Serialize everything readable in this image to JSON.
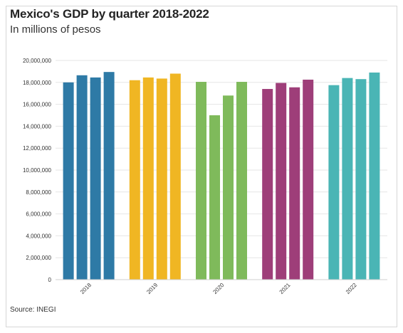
{
  "title": "Mexico's GDP by quarter 2018-2022",
  "subtitle": "In millions of pesos",
  "source": "Source: INEGI",
  "chart_data": {
    "type": "bar",
    "title": "Mexico's GDP by quarter 2018-2022",
    "subtitle": "In millions of pesos",
    "xlabel": "",
    "ylabel": "",
    "ylim": [
      0,
      20000000
    ],
    "yticks": [
      0,
      2000000,
      4000000,
      6000000,
      8000000,
      10000000,
      12000000,
      14000000,
      16000000,
      18000000,
      20000000
    ],
    "ytick_labels": [
      "0",
      "2,000,000",
      "4,000,000",
      "6,000,000",
      "8,000,000",
      "10,000,000",
      "12,000,000",
      "14,000,000",
      "16,000,000",
      "18,000,000",
      "20,000,000"
    ],
    "grid": true,
    "groups": [
      {
        "label": "2018",
        "color": "#2e7aa6",
        "values": [
          18000000,
          18650000,
          18450000,
          18950000
        ]
      },
      {
        "label": "2019",
        "color": "#f0b623",
        "values": [
          18200000,
          18450000,
          18350000,
          18800000
        ]
      },
      {
        "label": "2020",
        "color": "#7fba5b",
        "values": [
          18050000,
          15000000,
          16800000,
          18050000
        ]
      },
      {
        "label": "2021",
        "color": "#9e3e79",
        "values": [
          17400000,
          17950000,
          17550000,
          18250000
        ]
      },
      {
        "label": "2022",
        "color": "#4ab5b5",
        "values": [
          17750000,
          18400000,
          18300000,
          18900000
        ]
      }
    ]
  }
}
